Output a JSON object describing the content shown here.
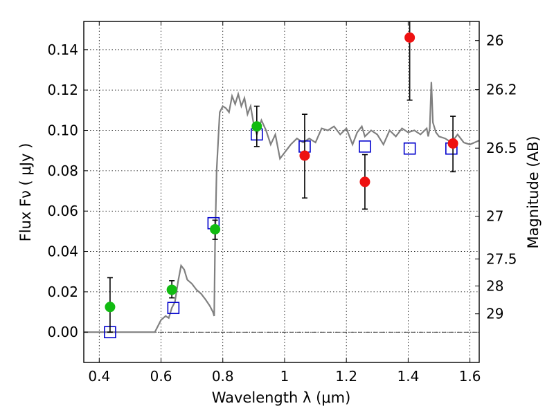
{
  "chart_data": {
    "type": "scatter",
    "xlabel": "Wavelength  λ (μm)",
    "ylabel": "Flux  Fν  ( μJy )",
    "y2label": "Magnitude (AB)",
    "xlim": [
      0.35,
      1.63
    ],
    "ylim": [
      -0.015,
      0.154
    ],
    "grid": true,
    "x_ticks": [
      0.4,
      0.6,
      0.8,
      1.0,
      1.2,
      1.4,
      1.6
    ],
    "x_tick_labels": [
      "0.4",
      "0.6",
      "0.8",
      "1",
      "1.2",
      "1.4",
      "1.6"
    ],
    "y_ticks": [
      0.0,
      0.02,
      0.04,
      0.06,
      0.08,
      0.1,
      0.12,
      0.14
    ],
    "y_tick_labels": [
      "0.00",
      "0.02",
      "0.04",
      "0.06",
      "0.08",
      "0.10",
      "0.12",
      "0.14"
    ],
    "y2_ticks": [
      {
        "label": "26",
        "flux": 0.1445
      },
      {
        "label": "26.2",
        "flux": 0.1202
      },
      {
        "label": "26.5",
        "flux": 0.0912
      },
      {
        "label": "27",
        "flux": 0.0575
      },
      {
        "label": "27.5",
        "flux": 0.0363
      },
      {
        "label": "28",
        "flux": 0.0229
      },
      {
        "label": "29",
        "flux": 0.0091
      }
    ],
    "series": [
      {
        "kind": "model_sed_line",
        "color": "#808080",
        "points": [
          [
            0.35,
            0.0
          ],
          [
            0.58,
            0.0
          ],
          [
            0.6,
            0.006
          ],
          [
            0.615,
            0.008
          ],
          [
            0.625,
            0.007
          ],
          [
            0.635,
            0.012
          ],
          [
            0.645,
            0.015
          ],
          [
            0.655,
            0.025
          ],
          [
            0.665,
            0.033
          ],
          [
            0.675,
            0.031
          ],
          [
            0.685,
            0.026
          ],
          [
            0.7,
            0.024
          ],
          [
            0.715,
            0.021
          ],
          [
            0.73,
            0.019
          ],
          [
            0.745,
            0.016
          ],
          [
            0.758,
            0.013
          ],
          [
            0.768,
            0.01
          ],
          [
            0.772,
            0.008
          ],
          [
            0.775,
            0.045
          ],
          [
            0.78,
            0.08
          ],
          [
            0.785,
            0.095
          ],
          [
            0.79,
            0.109
          ],
          [
            0.8,
            0.112
          ],
          [
            0.81,
            0.111
          ],
          [
            0.82,
            0.109
          ],
          [
            0.83,
            0.117
          ],
          [
            0.84,
            0.113
          ],
          [
            0.85,
            0.118
          ],
          [
            0.86,
            0.112
          ],
          [
            0.87,
            0.116
          ],
          [
            0.88,
            0.108
          ],
          [
            0.89,
            0.112
          ],
          [
            0.9,
            0.103
          ],
          [
            0.91,
            0.098
          ],
          [
            0.925,
            0.105
          ],
          [
            0.94,
            0.1
          ],
          [
            0.955,
            0.093
          ],
          [
            0.97,
            0.098
          ],
          [
            0.985,
            0.086
          ],
          [
            1.0,
            0.089
          ],
          [
            1.02,
            0.093
          ],
          [
            1.04,
            0.096
          ],
          [
            1.06,
            0.094
          ],
          [
            1.08,
            0.096
          ],
          [
            1.1,
            0.094
          ],
          [
            1.12,
            0.101
          ],
          [
            1.14,
            0.1
          ],
          [
            1.16,
            0.102
          ],
          [
            1.18,
            0.098
          ],
          [
            1.2,
            0.101
          ],
          [
            1.22,
            0.093
          ],
          [
            1.235,
            0.099
          ],
          [
            1.25,
            0.102
          ],
          [
            1.26,
            0.097
          ],
          [
            1.28,
            0.1
          ],
          [
            1.3,
            0.098
          ],
          [
            1.32,
            0.093
          ],
          [
            1.34,
            0.1
          ],
          [
            1.36,
            0.097
          ],
          [
            1.38,
            0.101
          ],
          [
            1.4,
            0.099
          ],
          [
            1.42,
            0.1
          ],
          [
            1.44,
            0.098
          ],
          [
            1.46,
            0.101
          ],
          [
            1.465,
            0.097
          ],
          [
            1.47,
            0.101
          ],
          [
            1.475,
            0.124
          ],
          [
            1.48,
            0.104
          ],
          [
            1.49,
            0.099
          ],
          [
            1.5,
            0.097
          ],
          [
            1.52,
            0.096
          ],
          [
            1.54,
            0.094
          ],
          [
            1.56,
            0.098
          ],
          [
            1.58,
            0.094
          ],
          [
            1.6,
            0.093
          ],
          [
            1.63,
            0.095
          ]
        ]
      },
      {
        "kind": "model_photometry_squares",
        "color": "#0000cc",
        "points": [
          [
            0.435,
            0.0
          ],
          [
            0.64,
            0.012
          ],
          [
            0.77,
            0.054
          ],
          [
            0.91,
            0.098
          ],
          [
            1.065,
            0.092
          ],
          [
            1.26,
            0.092
          ],
          [
            1.405,
            0.091
          ],
          [
            1.54,
            0.091
          ]
        ]
      },
      {
        "kind": "observed_green",
        "color": "#11bb11",
        "points": [
          {
            "x": 0.435,
            "y": 0.0125,
            "yerr_lo": 0.0125,
            "yerr_hi": 0.0145
          },
          {
            "x": 0.635,
            "y": 0.021,
            "yerr_lo": 0.004,
            "yerr_hi": 0.0045
          },
          {
            "x": 0.775,
            "y": 0.051,
            "yerr_lo": 0.005,
            "yerr_hi": 0.0045
          },
          {
            "x": 0.91,
            "y": 0.102,
            "yerr_lo": 0.01,
            "yerr_hi": 0.01
          }
        ]
      },
      {
        "kind": "observed_red",
        "color": "#ee1111",
        "points": [
          {
            "x": 1.065,
            "y": 0.0875,
            "yerr_lo": 0.021,
            "yerr_hi": 0.0205
          },
          {
            "x": 1.26,
            "y": 0.0745,
            "yerr_lo": 0.0135,
            "yerr_hi": 0.0135
          },
          {
            "x": 1.405,
            "y": 0.146,
            "yerr_lo": 0.031,
            "yerr_hi": 0.012
          },
          {
            "x": 1.545,
            "y": 0.0935,
            "yerr_lo": 0.014,
            "yerr_hi": 0.0135
          }
        ]
      }
    ]
  }
}
